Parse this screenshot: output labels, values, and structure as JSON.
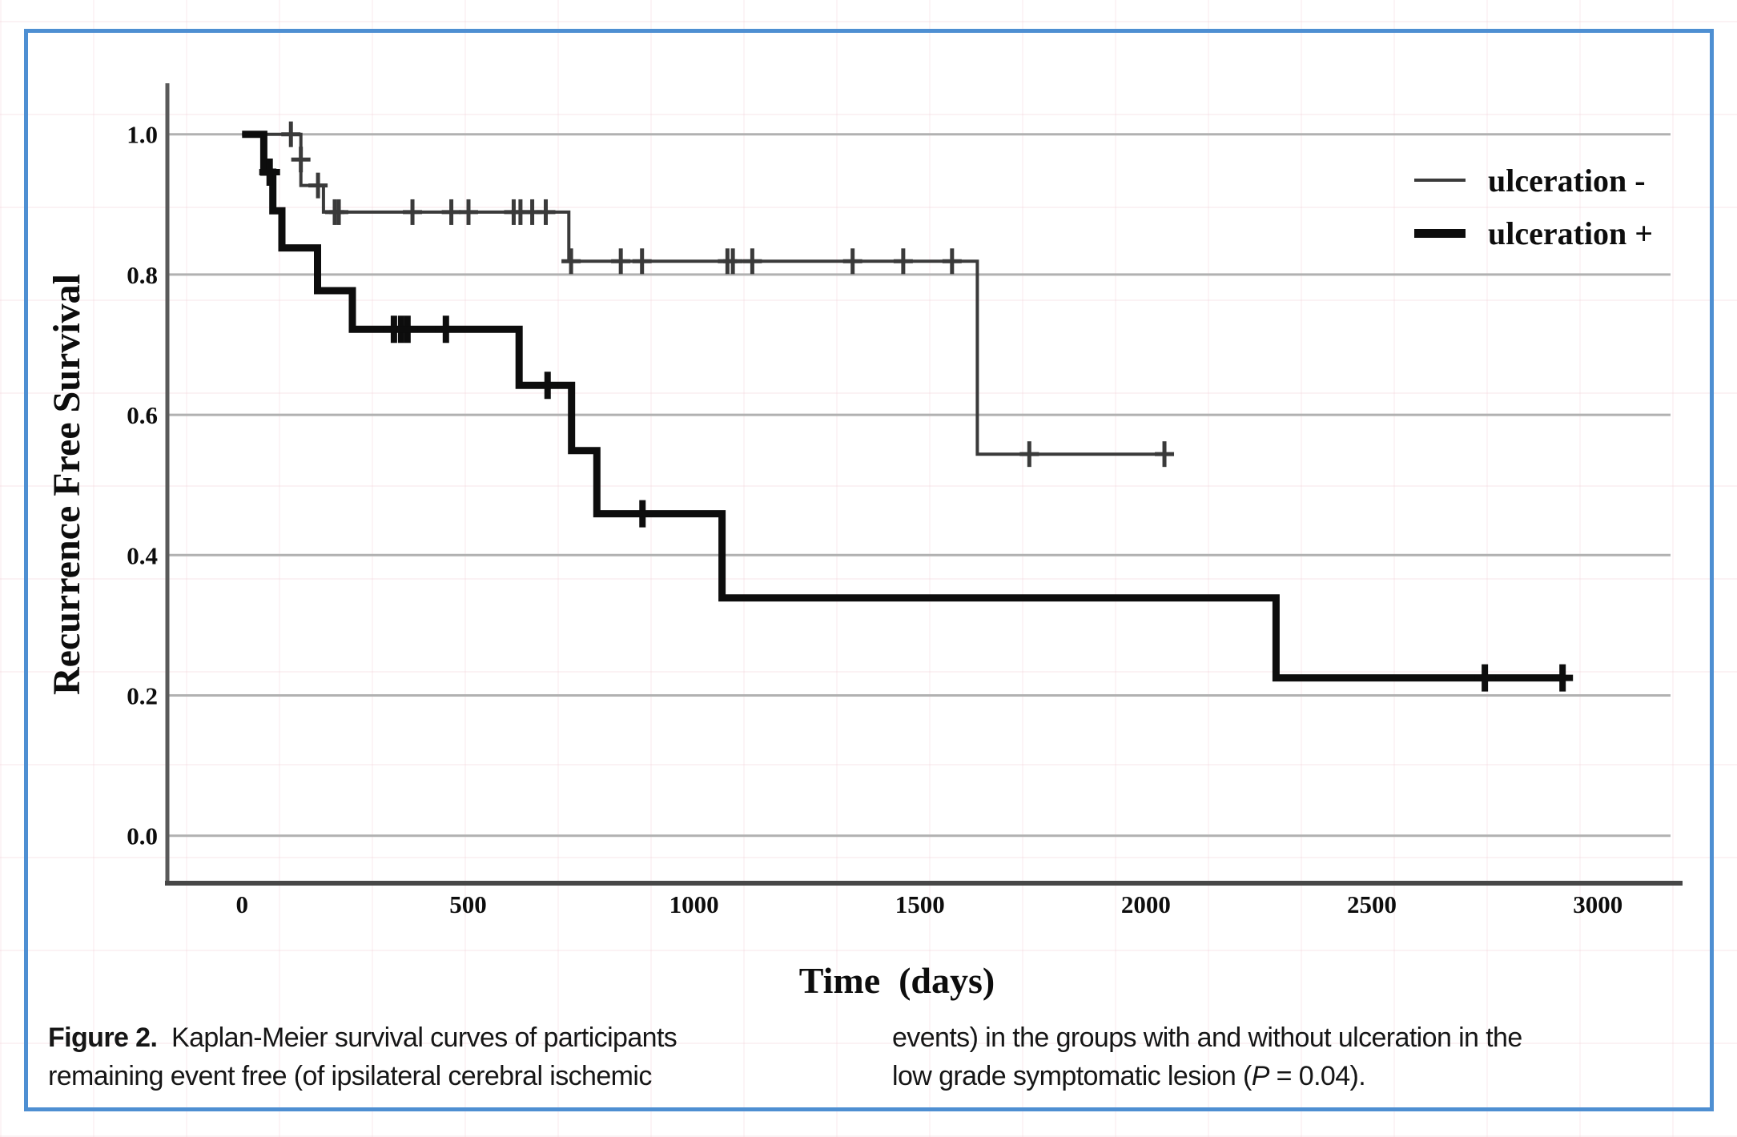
{
  "figure": {
    "border_color": "#4e8fd2",
    "background_color": "#ffffff"
  },
  "chart_data": {
    "type": "line",
    "subtype": "kaplan_meier_step",
    "title": "",
    "xlabel": "Time  (days)",
    "ylabel": "Recurrence Free Survival",
    "xlim": [
      0,
      3000
    ],
    "ylim": [
      0.0,
      1.0
    ],
    "grid": "horizontal",
    "legend_position": "top-right",
    "x_ticks": {
      "values": [
        0,
        500,
        1000,
        1500,
        2000,
        2500,
        3000
      ],
      "labels": [
        "0",
        "500",
        "1000",
        "1500",
        "2000",
        "2500",
        "3000"
      ]
    },
    "y_ticks": {
      "values": [
        1.0,
        0.8,
        0.6,
        0.4,
        0.2,
        0.0
      ],
      "labels": [
        "1.0",
        "0.8",
        "0.6",
        "0.4",
        "0.2",
        "0.0"
      ]
    },
    "series": [
      {
        "name": "ulceration -",
        "style": "thin",
        "color": "#3a3a3a",
        "stroke_width": 4,
        "steps": [
          [
            0,
            1.0
          ],
          [
            130,
            1.0
          ],
          [
            130,
            0.927
          ],
          [
            180,
            0.927
          ],
          [
            180,
            0.889
          ],
          [
            723,
            0.889
          ],
          [
            723,
            0.819
          ],
          [
            1627,
            0.819
          ],
          [
            1627,
            0.544
          ],
          [
            2041,
            0.544
          ]
        ],
        "censors": [
          [
            108,
            1.0
          ],
          [
            130,
            0.964
          ],
          [
            168,
            0.927
          ],
          [
            205,
            0.889
          ],
          [
            214,
            0.889
          ],
          [
            377,
            0.889
          ],
          [
            463,
            0.889
          ],
          [
            501,
            0.889
          ],
          [
            601,
            0.889
          ],
          [
            616,
            0.889
          ],
          [
            642,
            0.889
          ],
          [
            672,
            0.889
          ],
          [
            728,
            0.819
          ],
          [
            838,
            0.819
          ],
          [
            885,
            0.819
          ],
          [
            1074,
            0.819
          ],
          [
            1086,
            0.819
          ],
          [
            1129,
            0.819
          ],
          [
            1351,
            0.819
          ],
          [
            1463,
            0.819
          ],
          [
            1571,
            0.819
          ],
          [
            1742,
            0.544
          ],
          [
            2041,
            0.544
          ]
        ]
      },
      {
        "name": "ulceration +",
        "style": "thick",
        "color": "#0d0d0d",
        "stroke_width": 9,
        "steps": [
          [
            0,
            1.0
          ],
          [
            48,
            1.0
          ],
          [
            48,
            0.946
          ],
          [
            68,
            0.946
          ],
          [
            68,
            0.891
          ],
          [
            88,
            0.891
          ],
          [
            88,
            0.838
          ],
          [
            167,
            0.838
          ],
          [
            167,
            0.777
          ],
          [
            244,
            0.777
          ],
          [
            244,
            0.722
          ],
          [
            613,
            0.722
          ],
          [
            613,
            0.642
          ],
          [
            729,
            0.642
          ],
          [
            729,
            0.549
          ],
          [
            785,
            0.549
          ],
          [
            785,
            0.459
          ],
          [
            1062,
            0.459
          ],
          [
            1062,
            0.339
          ],
          [
            2288,
            0.339
          ],
          [
            2288,
            0.225
          ],
          [
            2922,
            0.225
          ]
        ],
        "censors": [
          [
            61,
            0.946
          ],
          [
            336,
            0.722
          ],
          [
            352,
            0.722
          ],
          [
            366,
            0.722
          ],
          [
            451,
            0.722
          ],
          [
            676,
            0.642
          ],
          [
            886,
            0.459
          ],
          [
            2750,
            0.225
          ],
          [
            2922,
            0.225
          ]
        ]
      }
    ]
  },
  "legend": {
    "items": [
      {
        "label": "ulceration -",
        "style": "thin"
      },
      {
        "label": "ulceration +",
        "style": "thick"
      }
    ]
  },
  "caption": {
    "left_column": {
      "figure_label": "Figure 2.",
      "line1": "  Kaplan-Meier survival curves of participants",
      "line2": "remaining event free (of ipsilateral cerebral ischemic"
    },
    "right_column": {
      "line1": "events) in the groups with and without ulceration in the",
      "line2_pre": "low grade symptomatic lesion (",
      "line2_italic": "P",
      "line2_post": " = 0.04)."
    }
  }
}
